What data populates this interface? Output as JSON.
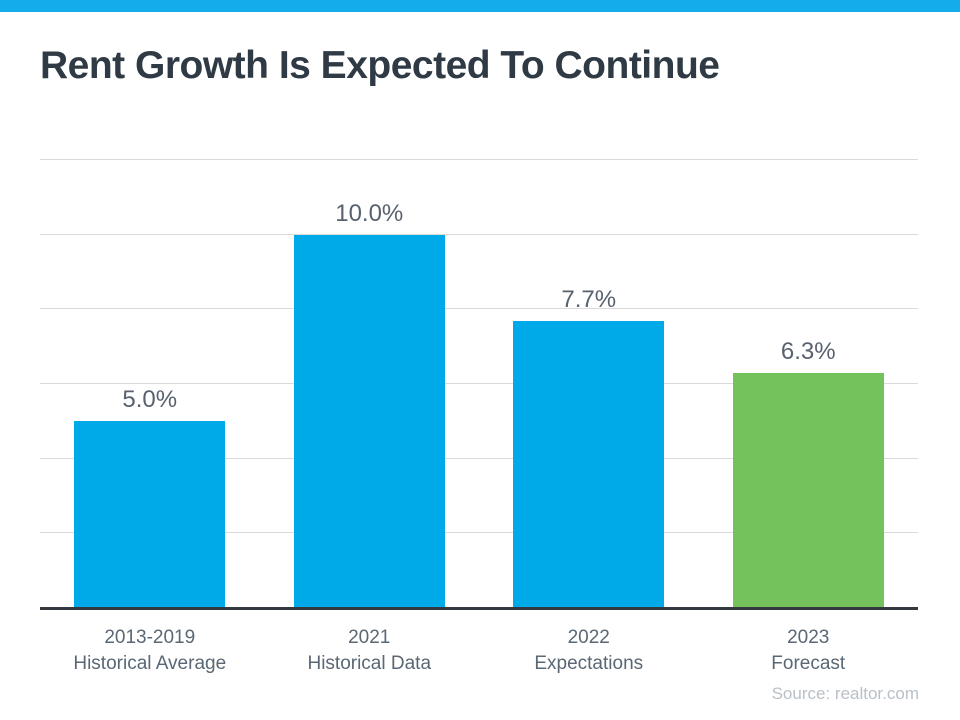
{
  "page": {
    "title": "Rent Growth Is Expected To Continue",
    "source_note": "Source: realtor.com"
  },
  "colors": {
    "accent_strip": "#15ACEC",
    "bar_blue": "#00A9E8",
    "bar_green": "#73C25C",
    "gridline": "#DADADA",
    "axis_line": "#33393F",
    "title_text": "#2F3A45",
    "value_label_text": "#58626E",
    "category_label_text": "#5A6774",
    "source_text": "#B9C0C8"
  },
  "chart_data": {
    "type": "bar",
    "title": "Rent Growth Is Expected To Continue",
    "categories": [
      {
        "line1": "2013-2019",
        "line2": "Historical Average"
      },
      {
        "line1": "2021",
        "line2": "Historical Data"
      },
      {
        "line1": "2022",
        "line2": "Expectations"
      },
      {
        "line1": "2023",
        "line2": "Forecast"
      }
    ],
    "values": [
      5.0,
      10.0,
      7.7,
      6.3
    ],
    "value_labels": [
      "5.0%",
      "10.0%",
      "7.7%",
      "6.3%"
    ],
    "bar_colors": [
      "#00A9E8",
      "#00A9E8",
      "#00A9E8",
      "#73C25C"
    ],
    "xlabel": "",
    "ylabel": "",
    "ylim": [
      0,
      12
    ],
    "gridline_step": 2,
    "grid": true,
    "legend": "none"
  }
}
